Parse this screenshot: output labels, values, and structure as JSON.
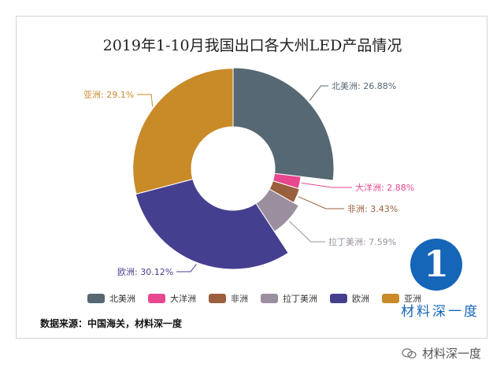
{
  "chart_data": {
    "type": "pie",
    "donut": true,
    "title": "2019年1-10月我国出口各大州LED产品情况",
    "slices": [
      {
        "name": "北美洲",
        "value": 26.88,
        "label": "北美洲: 26.88%",
        "color": "#556873",
        "radius_scale": 1.0
      },
      {
        "name": "大洋洲",
        "value": 2.88,
        "label": "大洋洲: 2.88%",
        "color": "#e8478f",
        "radius_scale": 0.45
      },
      {
        "name": "非洲",
        "value": 3.43,
        "label": "非洲: 3.43%",
        "color": "#9a5f3d",
        "radius_scale": 0.47
      },
      {
        "name": "拉丁美洲",
        "value": 7.59,
        "label": "拉丁美洲: 7.59%",
        "color": "#9b8f9f",
        "radius_scale": 0.57
      },
      {
        "name": "欧洲",
        "value": 30.12,
        "label": "欧洲: 30.12%",
        "color": "#453f90",
        "radius_scale": 1.0
      },
      {
        "name": "亚洲",
        "value": 29.1,
        "label": "亚洲: 29.1%",
        "color": "#c98a28",
        "radius_scale": 0.99
      }
    ],
    "legend_position": "bottom"
  },
  "source": "数据来源：中国海关，材料深一度",
  "logo": {
    "glyph": "1",
    "text": "材料深一度"
  },
  "watermark": {
    "text": "材料深一度",
    "icon": "wechat-icon"
  }
}
